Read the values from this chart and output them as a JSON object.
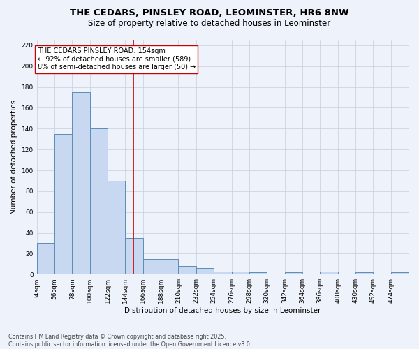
{
  "title_line1": "THE CEDARS, PINSLEY ROAD, LEOMINSTER, HR6 8NW",
  "title_line2": "Size of property relative to detached houses in Leominster",
  "xlabel": "Distribution of detached houses by size in Leominster",
  "ylabel": "Number of detached properties",
  "bin_labels": [
    "34sqm",
    "56sqm",
    "78sqm",
    "100sqm",
    "122sqm",
    "144sqm",
    "166sqm",
    "188sqm",
    "210sqm",
    "232sqm",
    "254sqm",
    "276sqm",
    "298sqm",
    "320sqm",
    "342sqm",
    "364sqm",
    "386sqm",
    "408sqm",
    "430sqm",
    "452sqm",
    "474sqm"
  ],
  "bin_edges": [
    34,
    56,
    78,
    100,
    122,
    144,
    166,
    188,
    210,
    232,
    254,
    276,
    298,
    320,
    342,
    364,
    386,
    408,
    430,
    452,
    474,
    496
  ],
  "bar_heights": [
    30,
    135,
    175,
    140,
    90,
    35,
    15,
    15,
    8,
    6,
    3,
    3,
    2,
    0,
    2,
    0,
    3,
    0,
    2,
    0,
    2
  ],
  "bar_color": "#c8d8f0",
  "bar_edge_color": "#5b8db8",
  "reference_line_x": 154,
  "reference_line_color": "#cc0000",
  "annotation_text": "THE CEDARS PINSLEY ROAD: 154sqm\n← 92% of detached houses are smaller (589)\n8% of semi-detached houses are larger (50) →",
  "annotation_box_color": "#ffffff",
  "annotation_box_edge_color": "#cc0000",
  "ylim": [
    0,
    225
  ],
  "yticks": [
    0,
    20,
    40,
    60,
    80,
    100,
    120,
    140,
    160,
    180,
    200,
    220
  ],
  "background_color": "#eef2fa",
  "plot_background_color": "#eef2fa",
  "footer_line1": "Contains HM Land Registry data © Crown copyright and database right 2025.",
  "footer_line2": "Contains public sector information licensed under the Open Government Licence v3.0.",
  "title_fontsize": 9.5,
  "subtitle_fontsize": 8.5,
  "axis_label_fontsize": 7.5,
  "tick_fontsize": 6.5,
  "annotation_fontsize": 7,
  "footer_fontsize": 5.8
}
